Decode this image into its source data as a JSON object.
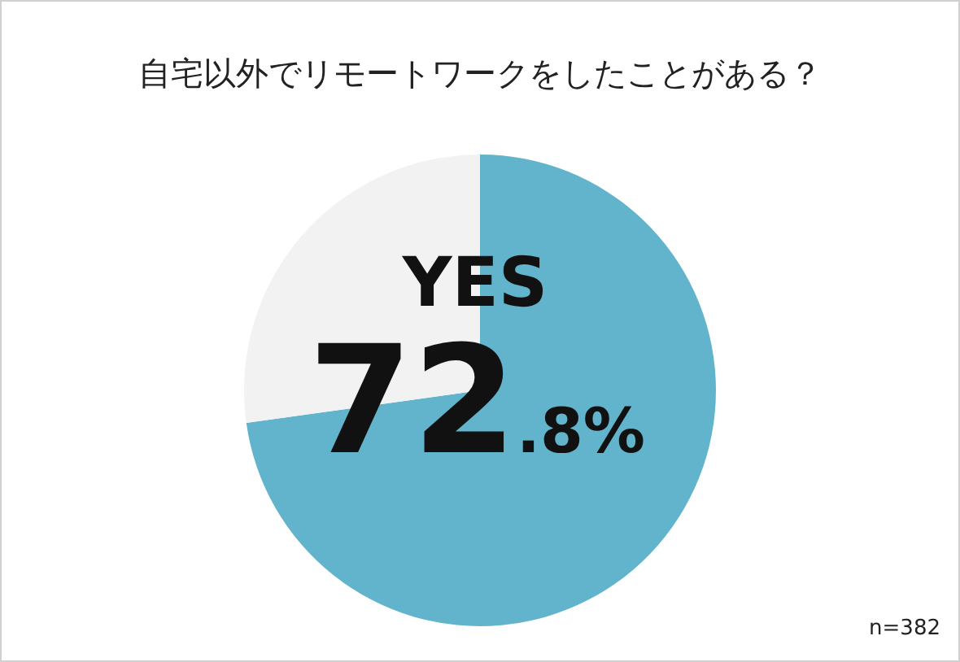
{
  "chart_data": {
    "type": "pie",
    "title": "自宅以外でリモートワークをしたことがある？",
    "categories": [
      "YES",
      null
    ],
    "values": [
      72.8,
      27.2
    ],
    "colors": [
      "#62b4cc",
      "#f2f2f2"
    ],
    "value_labels": [
      "72.8%",
      null
    ],
    "legend": false,
    "annotations": [
      "n=382"
    ]
  }
}
